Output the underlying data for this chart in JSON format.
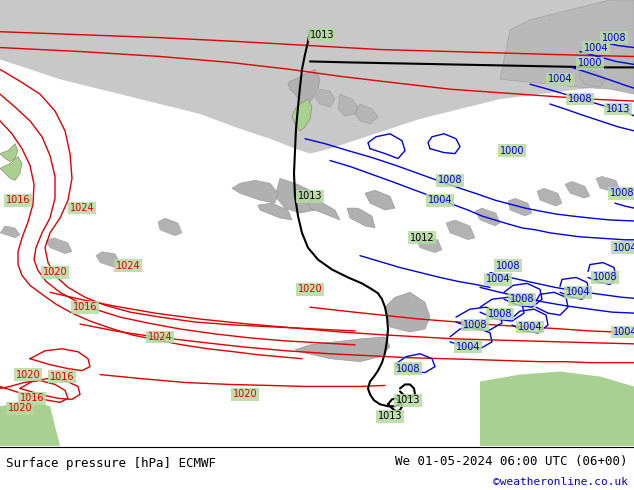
{
  "title_left": "Surface pressure [hPa] ECMWF",
  "title_right": "We 01-05-2024 06:00 UTC (06+00)",
  "credit": "©weatheronline.co.uk",
  "fig_width": 6.34,
  "fig_height": 4.9,
  "dpi": 100,
  "map_bg_green": "#b5d9a0",
  "ocean_gray": "#c8c8c8",
  "land_gray": "#b8b8b8",
  "white_bg": "#ffffff",
  "red_color": "#e00000",
  "blue_color": "#0000e0",
  "black_color": "#000000",
  "credit_color": "#0000cc",
  "label_fs": 7,
  "title_fs": 9,
  "credit_fs": 8,
  "lw_iso": 1.0,
  "lw_black": 1.5
}
